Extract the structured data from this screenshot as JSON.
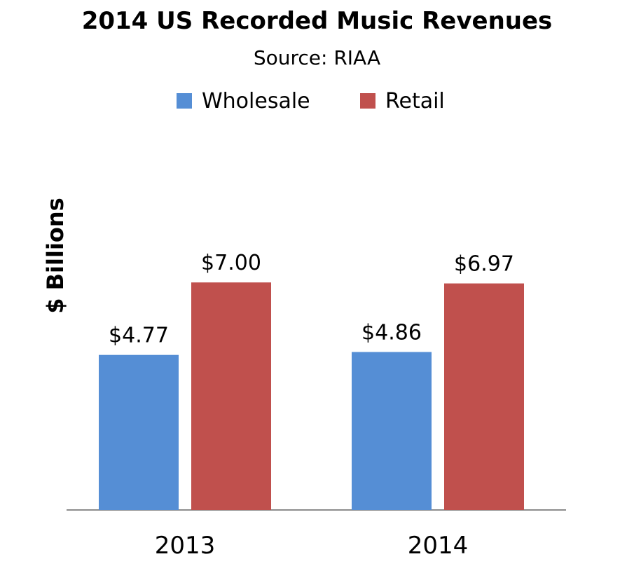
{
  "title": "2014 US Recorded Music Revenues",
  "subtitle": "Source: RIAA",
  "chart_data": {
    "type": "bar",
    "title": "2014 US Recorded Music Revenues",
    "subtitle": "Source: RIAA",
    "xlabel": "",
    "ylabel": "$ Billions",
    "categories": [
      "2013",
      "2014"
    ],
    "series": [
      {
        "name": "Wholesale",
        "color": "#558ed5",
        "values": [
          4.77,
          4.86
        ],
        "labels": [
          "$4.77",
          "$4.86"
        ]
      },
      {
        "name": "Retail",
        "color": "#c0504d",
        "values": [
          7.0,
          6.97
        ],
        "labels": [
          "$7.00",
          "$6.97"
        ]
      }
    ],
    "ylim": [
      0,
      8
    ],
    "grid": false,
    "legend_position": "top"
  }
}
